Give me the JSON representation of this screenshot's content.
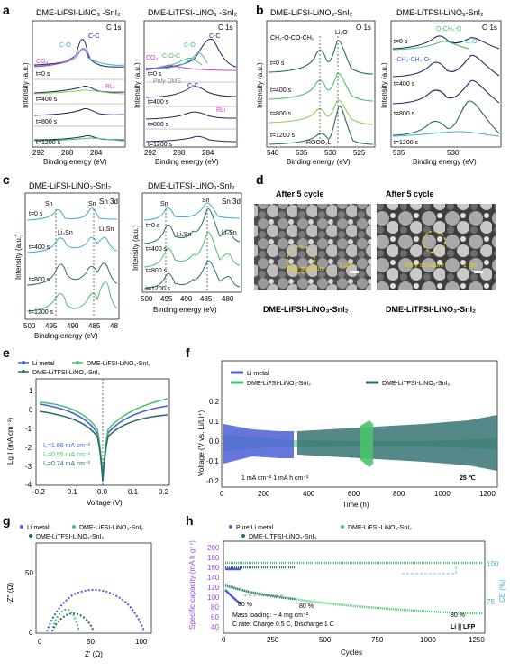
{
  "panels": {
    "a": {
      "letter": "a",
      "left": {
        "title": "DME-LiFSI-LiNO₃ -SnI₂",
        "corner": "C 1s",
        "labels": [
          "CO₃",
          "C-O",
          "C-C",
          "RLi"
        ]
      },
      "right": {
        "title": "DME-LiTFSI-LiNO₃ -SnI₂",
        "corner": "C 1s",
        "labels": [
          "CO₃",
          "C-O-C",
          "C-O",
          "C-C",
          "Poly DME",
          "C-C",
          "RLi"
        ]
      },
      "times": [
        "t=0 s",
        "t=400 s",
        "t=800 s",
        "t=1200 s"
      ],
      "xlabel": "Binding energy (eV)",
      "ylabel": "Intensity (a.u.)",
      "xticks": [
        "292",
        "288",
        "284"
      ]
    },
    "b": {
      "letter": "b",
      "left": {
        "title": "DME-LiFSI-LiNO₃-SnI₂",
        "corner": "O 1s",
        "labels": [
          "CH₂-O-CO-CH₂",
          "Li₂O",
          "ROCO₂Li"
        ],
        "xticks": [
          "540",
          "535",
          "530",
          "525"
        ]
      },
      "right": {
        "title": "DME-LiTFSI-LiNO₃-SnI₂",
        "corner": "O 1s",
        "labels": [
          "O-CH₂-O",
          "Li₂O",
          "-CH₂-CH₂-O-"
        ],
        "xticks": [
          "535",
          "530"
        ]
      },
      "times": [
        "t=0 s",
        "t=400 s",
        "t=800 s",
        "t=1200 s"
      ],
      "xlabel": "Binding energy (eV)",
      "ylabel": "Intensity (a.u.)"
    },
    "c": {
      "letter": "c",
      "left": {
        "title": "DME-LiFSI-LiNO₃-SnI₂",
        "corner": "Sn 3d",
        "labels": [
          "Sn",
          "Li₂Sn",
          "Sn",
          "LiₓSn"
        ],
        "xticks": [
          "500",
          "495",
          "490",
          "485",
          "48"
        ]
      },
      "right": {
        "title": "DME-LiTFSI-LiNO₃-SnI₂",
        "corner": "Sn 3d",
        "labels": [
          "Sn",
          "Sn",
          "LiₓSn",
          "Li₂Sn"
        ],
        "xticks": [
          "500",
          "495",
          "490",
          "485",
          "480"
        ]
      },
      "times": [
        "t=0 s",
        "t=400 s",
        "t=800 s",
        "t=1200 s"
      ],
      "xlabel": "Binding energy (eV)",
      "ylabel": "Intensity (a.u.)"
    },
    "d": {
      "letter": "d",
      "left": {
        "heading": "After 5 cycle",
        "annotation": "Poly structure",
        "scale": "1 μm",
        "caption": "DME-LiFSI-LiNO₃-SnI₂"
      },
      "right": {
        "heading": "After 5 cycle",
        "annotation": "Poly structure",
        "scale": "1 μm",
        "caption": "DME-LiTFSI-LiNO₃-SnI₂"
      }
    },
    "e": {
      "letter": "e",
      "legend": [
        "Li metal",
        "DME-LiFSI-LiNO₃-SnI₂",
        "DME-LiTFSI-LiNO₃-SnI₂"
      ],
      "currents": [
        "I₀=1.86 mA cm⁻²",
        "I₀=0.55 mA cm⁻²",
        "I₀=0.74 mA cm⁻²"
      ],
      "xlabel": "Voltage (V)",
      "ylabel": "Lg I (mA cm⁻²)",
      "xticks": [
        "-0.2",
        "-0.1",
        "0.0",
        "0.1",
        "0.2"
      ],
      "yticks": [
        "1",
        "0",
        "-1",
        "-2",
        "-3",
        "-4"
      ]
    },
    "f": {
      "letter": "f",
      "legend": [
        "Li metal",
        "DME-LiFSI-LiNO₃-SnI₂",
        "DME-LiTFSI-LiNO₃-SnI₂"
      ],
      "note": "1 mA cm⁻²  1 mA h cm⁻²",
      "temp": "25 ℃",
      "xlabel": "Time (h)",
      "ylabel": "Voltage (V vs. Li/Li⁺)",
      "xticks": [
        "0",
        "200",
        "400",
        "600",
        "800",
        "1000",
        "1200"
      ],
      "yticks": [
        "0.2",
        "0.1",
        "0.0",
        "-0.1",
        "-0.2"
      ]
    },
    "g": {
      "letter": "g",
      "legend": [
        "Li metal",
        "DME-LiFSI-LiNO₃-SnI₂",
        "DME-LiTFSI-LiNO₃-SnI₂"
      ],
      "xlabel": "Z' (Ω)",
      "ylabel": "-Z'' (Ω)",
      "xticks": [
        "0",
        "50",
        "100"
      ],
      "yticks": [
        "0",
        "50"
      ]
    },
    "h": {
      "letter": "h",
      "legend": [
        "Pure Li metal",
        "DME-LiFSI-LiNO₃-SnI₂",
        "DME-LiTFSI-LiNO₃-SnI₃"
      ],
      "pct": [
        "80 %",
        "80 %",
        "80 %"
      ],
      "mass": "Mass loading: ~ 4 mg cm⁻²",
      "rate": "C rate: Charge 0.5 C, Discharge 1 C",
      "cell": "Li || LFP",
      "xlabel": "Cycles",
      "ylabel": "Specific capacity (mA h g⁻¹)",
      "ylabel2": "CE (%)",
      "xticks": [
        "0",
        "250",
        "500",
        "750",
        "1000",
        "1250"
      ],
      "yticks": [
        "40",
        "60",
        "80",
        "100",
        "120",
        "140",
        "160",
        "180",
        "200"
      ],
      "y2ticks": [
        "75",
        "100"
      ]
    }
  },
  "colors": {
    "navy": "#1b2a6b",
    "blue": "#4a5fd6",
    "green": "#49c26b",
    "teal": "#2a6b6b",
    "cyan": "#3cb0d0",
    "lightgreen": "#8ad05a",
    "magenta": "#d040c0",
    "purple": "#9b4bd6",
    "gray": "#888888"
  }
}
